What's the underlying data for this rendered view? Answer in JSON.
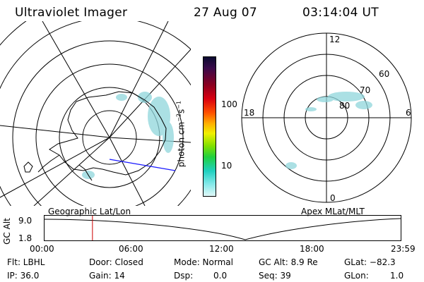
{
  "header": {
    "instrument": "Ultraviolet Imager",
    "date": "27 Aug 07",
    "time": "03:14:04 UT"
  },
  "colorbar": {
    "unit_label": "photon cm",
    "unit_exp1": "−2",
    "unit_mid": "s",
    "unit_exp2": "−1",
    "ticks": [
      "100",
      "10"
    ]
  },
  "mlt_panel": {
    "mlt_labels": {
      "top": "12",
      "left": "18",
      "right": "6",
      "bottom": "0"
    },
    "lat_labels": [
      "60",
      "70",
      "80"
    ]
  },
  "timeline": {
    "left_caption": "Geographic Lat/Lon",
    "right_caption": "Apex MLat/MLT",
    "axis_label": "GC Alt",
    "y_max": "9.0",
    "y_min": "1.8",
    "time_ticks": [
      "00:00",
      "06:00",
      "12:00",
      "18:00",
      "23:59"
    ],
    "marker_time_hours": 3.23
  },
  "info": {
    "flt": "Flt: LBHL",
    "ip": "IP: 36.0",
    "door": "Door: Closed",
    "gain": "Gain: 14",
    "mode": "Mode: Normal",
    "dsp_label": "Dsp:",
    "dsp_value": "0.0",
    "gc_alt": "GC Alt: 8.9 Re",
    "seq": "Seq: 39",
    "glat": "GLat: −82.3",
    "glon_label": "GLon:",
    "glon_value": "1.0"
  },
  "colors": {
    "marker": "#cc0000",
    "track": "#1a1aff",
    "aurora": "#8fd6dc"
  }
}
